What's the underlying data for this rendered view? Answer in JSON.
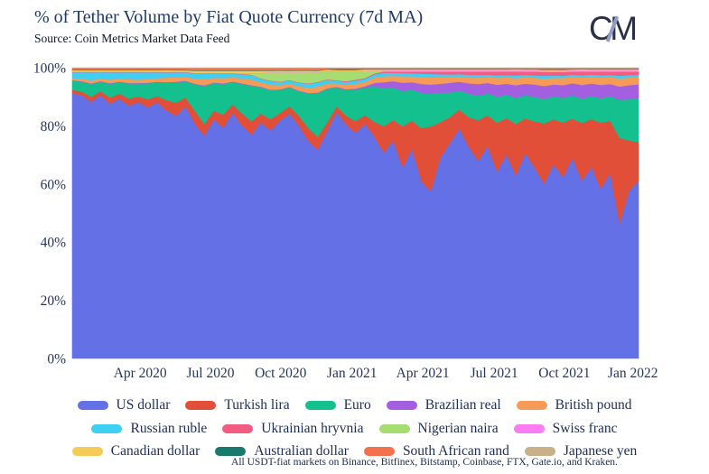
{
  "header": {
    "title": "% of Tether Volume by Fiat Quote Currency (7d MA)",
    "source": "Source: Coin Metrics Market Data Feed",
    "logo": {
      "left_letter": "C",
      "right_letter": "M",
      "slash_color": "#939bc7",
      "letter_color": "#2a3049"
    }
  },
  "footer": {
    "note": "All USDT-fiat markets on Binance, Bitfinex, Bitstamp, Coinbase, FTX, Gate.io, and Kraken."
  },
  "colors": {
    "title_text": "#1e3a68",
    "axis_text": "#26355e",
    "legend_text": "#1e2d55",
    "background": "#ffffff"
  },
  "legend": {
    "rows": [
      [
        "US dollar",
        "Turkish lira",
        "Euro",
        "Brazilian real",
        "British pound"
      ],
      [
        "Russian ruble",
        "Ukrainian hryvnia",
        "Nigerian naira",
        "Swiss franc"
      ],
      [
        "Canadian dollar",
        "Australian dollar",
        "South African rand",
        "Japanese yen"
      ]
    ]
  },
  "chart_data": {
    "type": "area",
    "stacked": true,
    "normalized_to_100_percent": true,
    "title": "% of Tether Volume by Fiat Quote Currency (7d MA)",
    "xlabel": "",
    "ylabel": "",
    "ylim": [
      0,
      100
    ],
    "grid": false,
    "legend_position": "bottom",
    "x_range": "Jan 2020 to Jan 2022, 61 samples (~12-day intervals)",
    "x_ticks": [
      {
        "label": "Apr 2020",
        "t": 0.12
      },
      {
        "label": "Jul 2020",
        "t": 0.244
      },
      {
        "label": "Oct 2020",
        "t": 0.368
      },
      {
        "label": "Jan 2021",
        "t": 0.494
      },
      {
        "label": "Apr 2021",
        "t": 0.619
      },
      {
        "label": "Jul 2021",
        "t": 0.745
      },
      {
        "label": "Oct 2021",
        "t": 0.869
      },
      {
        "label": "Jan 2022",
        "t": 0.99
      }
    ],
    "y_ticks": [
      {
        "v": 0,
        "label": "0%"
      },
      {
        "v": 20,
        "label": "20%"
      },
      {
        "v": 40,
        "label": "40%"
      },
      {
        "v": 60,
        "label": "60%"
      },
      {
        "v": 80,
        "label": "80%"
      },
      {
        "v": 100,
        "label": "100%"
      }
    ],
    "values_unit": "approximate % share of USDT-fiat volume (columns normalized to 100%)",
    "series": [
      {
        "name": "US dollar",
        "color": "#6470e6",
        "values": [
          93,
          92.5,
          90,
          92.5,
          89,
          90.5,
          88,
          89.5,
          87,
          88.5,
          85,
          83,
          86,
          80,
          76.5,
          82,
          79,
          83.5,
          79,
          76,
          81,
          79,
          82.5,
          84.5,
          81,
          76,
          72,
          78,
          86,
          82,
          78.5,
          80.5,
          76,
          70,
          74,
          65,
          70.5,
          60,
          57,
          68,
          74,
          79,
          72,
          68,
          73,
          65,
          70,
          64,
          71,
          66,
          61,
          67,
          63,
          69,
          62,
          66,
          59,
          64,
          46,
          57,
          60
        ]
      },
      {
        "name": "Turkish lira",
        "color": "#e14f38",
        "values": [
          1.2,
          1.3,
          1.8,
          1.4,
          2.2,
          1.8,
          2.5,
          2,
          2.8,
          2.2,
          3.5,
          4.5,
          3,
          4.5,
          4,
          3,
          4.5,
          2.8,
          4.2,
          4.5,
          3,
          4,
          2.8,
          2.5,
          3.5,
          4.5,
          4.5,
          3,
          2,
          3,
          4,
          3,
          5,
          9,
          7,
          14,
          9.5,
          18,
          22,
          12,
          9,
          6.5,
          10,
          14,
          10.5,
          17,
          12.5,
          18,
          12,
          16,
          21,
          15.5,
          19,
          13.5,
          20,
          16.5,
          23,
          18,
          29,
          17,
          13
        ]
      },
      {
        "name": "Euro",
        "color": "#14c08d",
        "values": [
          3.2,
          3.4,
          4.5,
          3.3,
          4.8,
          4,
          5.2,
          4.5,
          5.5,
          4.8,
          6,
          7,
          5.5,
          9,
          13,
          9.5,
          10.5,
          7.5,
          10,
          12,
          9,
          10,
          8,
          6.5,
          8.5,
          12,
          15,
          11.5,
          6.5,
          9,
          11,
          9.5,
          12,
          13,
          11,
          12,
          10.5,
          12,
          11,
          10,
          8.5,
          6.5,
          8,
          8.5,
          7.5,
          9,
          8,
          9,
          8,
          8.5,
          8.5,
          8,
          8.5,
          8,
          8.5,
          8,
          8.5,
          8.5,
          13,
          14,
          15
        ]
      },
      {
        "name": "Brazilian real",
        "color": "#a45fe0",
        "values": [
          0.2,
          0.2,
          0.2,
          0.2,
          0.2,
          0.2,
          0.2,
          0.2,
          0.2,
          0.2,
          0.2,
          0.2,
          0.2,
          0.2,
          0.2,
          0.2,
          0.2,
          0.2,
          0.2,
          0.2,
          0.2,
          0.2,
          0.2,
          0.2,
          0.2,
          0.2,
          0.2,
          0.2,
          0.3,
          0.3,
          0.35,
          0.4,
          1.2,
          2,
          2.2,
          2.8,
          2.5,
          3,
          3.2,
          3,
          3.3,
          3,
          3.5,
          4,
          3.6,
          4.2,
          3.8,
          4.5,
          4,
          4.3,
          4.6,
          4,
          4.5,
          4.2,
          4.8,
          4.3,
          4.6,
          4.2,
          4.5,
          4.8,
          4.5
        ]
      },
      {
        "name": "British pound",
        "color": "#f59b57",
        "values": [
          0.8,
          0.9,
          1.1,
          0.9,
          1.2,
          1,
          1.3,
          1.1,
          1.4,
          1.2,
          1.5,
          1.6,
          1.3,
          1.8,
          2.2,
          1.6,
          1.8,
          1.4,
          1.7,
          1.9,
          1.5,
          1.7,
          1.4,
          1.2,
          1.5,
          1.8,
          2,
          1.7,
          1.2,
          1.5,
          1.7,
          1.5,
          1.8,
          2,
          1.8,
          2.2,
          2,
          2.4,
          2.5,
          2.2,
          2,
          1.8,
          2,
          2.2,
          2,
          2.4,
          2.2,
          2.5,
          2.2,
          2.4,
          2.6,
          2.3,
          2.5,
          2.2,
          2.6,
          2.3,
          2.6,
          2.4,
          2.8,
          2.6,
          2.4
        ]
      },
      {
        "name": "Russian ruble",
        "color": "#3ecff2",
        "values": [
          2,
          2.2,
          2.8,
          2.2,
          2.6,
          2.2,
          2.4,
          2.6,
          2.2,
          2,
          1.8,
          1.6,
          1.5,
          1.6,
          1.8,
          1.4,
          1.5,
          1.2,
          1.4,
          1.5,
          1.2,
          1.3,
          1.1,
          1,
          1.2,
          1.4,
          1.5,
          1.2,
          0.9,
          1,
          1.1,
          1,
          1.1,
          1.2,
          1,
          1.1,
          1,
          1.1,
          1.1,
          1,
          0.9,
          0.8,
          0.9,
          0.9,
          0.8,
          0.9,
          0.8,
          0.9,
          0.8,
          0.8,
          0.9,
          0.8,
          0.8,
          0.7,
          0.8,
          0.7,
          0.8,
          0.7,
          0.9,
          0.8,
          0.8
        ]
      },
      {
        "name": "Ukrainian hryvnia",
        "color": "#f25c80",
        "values": [
          0.15,
          0.15,
          0.15,
          0.15,
          0.15,
          0.15,
          0.15,
          0.15,
          0.15,
          0.15,
          0.15,
          0.15,
          0.15,
          0.15,
          0.15,
          0.15,
          0.15,
          0.15,
          0.15,
          0.15,
          0.15,
          0.15,
          0.15,
          0.15,
          0.15,
          0.15,
          0.2,
          0.2,
          0.2,
          0.25,
          0.3,
          0.3,
          0.35,
          0.4,
          0.45,
          0.5,
          0.55,
          0.7,
          0.8,
          0.9,
          1,
          0.9,
          1.1,
          1.2,
          1.1,
          1.3,
          1.2,
          1.4,
          1.2,
          1.3,
          1.4,
          1.2,
          1.3,
          1.1,
          1.3,
          1.1,
          1.3,
          1.2,
          1.4,
          1.2,
          1.1
        ]
      },
      {
        "name": "Nigerian naira",
        "color": "#a5dd72",
        "values": [
          0.05,
          0.05,
          0.05,
          0.05,
          0.05,
          0.05,
          0.05,
          0.05,
          0.05,
          0.05,
          0.05,
          0.05,
          0.05,
          0.05,
          0.05,
          0.05,
          0.05,
          0.05,
          0.2,
          0.5,
          1.8,
          2.8,
          3.2,
          2.6,
          3.4,
          3.8,
          3.2,
          2.8,
          3,
          3.4,
          2.8,
          2.4,
          0.8,
          0.3,
          0.15,
          0.15,
          0.15,
          0.15,
          0.15,
          0.15,
          0.15,
          0.15,
          0.15,
          0.15,
          0.15,
          0.15,
          0.15,
          0.15,
          0.15,
          0.15,
          0.15,
          0.15,
          0.15,
          0.15,
          0.15,
          0.15,
          0.15,
          0.15,
          0.15,
          0.15,
          0.15
        ]
      },
      {
        "name": "Swiss franc",
        "color": "#f97cf2",
        "values": [
          0.1,
          0.1,
          0.1,
          0.1,
          0.1,
          0.1,
          0.1,
          0.1,
          0.1,
          0.1,
          0.1,
          0.1,
          0.1,
          0.1,
          0.1,
          0.1,
          0.1,
          0.1,
          0.1,
          0.1,
          0.1,
          0.1,
          0.1,
          0.1,
          0.1,
          0.1,
          0.1,
          0.1,
          0.1,
          0.1,
          0.1,
          0.1,
          0.1,
          0.1,
          0.25,
          0.25,
          0.25,
          0.25,
          0.25,
          0.25,
          0.25,
          0.25,
          0.25,
          0.25,
          0.25,
          0.25,
          0.25,
          0.25,
          0.25,
          0.25,
          0.25,
          0.25,
          0.25,
          0.25,
          0.25,
          0.25,
          0.25,
          0.25,
          0.25,
          0.25,
          0.25
        ]
      },
      {
        "name": "Canadian dollar",
        "color": "#f4cb57",
        "values": [
          0.45,
          0.45,
          0.45,
          0.45,
          0.45,
          0.45,
          0.45,
          0.45,
          0.45,
          0.45,
          0.45,
          0.45,
          0.45,
          0.7,
          0.7,
          0.7,
          0.7,
          0.7,
          0.7,
          0.7,
          0.7,
          0.5,
          0.5,
          0.5,
          0.5,
          0.5,
          0.5,
          0.5,
          0.5,
          0.5,
          0.5,
          0.5,
          0.5,
          0.35,
          0.35,
          0.35,
          0.35,
          0.35,
          0.35,
          0.35,
          0.35,
          0.35,
          0.35,
          0.35,
          0.35,
          0.35,
          0.35,
          0.35,
          0.35,
          0.35,
          0.35,
          0.35,
          0.35,
          0.35,
          0.35,
          0.35,
          0.35,
          0.35,
          0.35,
          0.35,
          0.35
        ]
      },
      {
        "name": "Australian dollar",
        "color": "#177a6c",
        "values": [
          0.15,
          0.15,
          0.15,
          0.15,
          0.15,
          0.15,
          0.15,
          0.15,
          0.15,
          0.15,
          0.15,
          0.15,
          0.15,
          0.15,
          0.15,
          0.15,
          0.15,
          0.15,
          0.15,
          0.15,
          0.15,
          0.15,
          0.15,
          0.15,
          0.15,
          0.15,
          0.15,
          0.15,
          0.35,
          0.35,
          0.35,
          0.15,
          0.15,
          0.15,
          0.15,
          0.15,
          0.15,
          0.15,
          0.15,
          0.15,
          0.15,
          0.15,
          0.15,
          0.15,
          0.15,
          0.15,
          0.15,
          0.15,
          0.15,
          0.15,
          0.3,
          0.3,
          0.3,
          0.15,
          0.15,
          0.15,
          0.15,
          0.15,
          0.15,
          0.15,
          0.15
        ]
      },
      {
        "name": "South African rand",
        "color": "#f4714d",
        "values": [
          0.6,
          0.6,
          0.6,
          0.6,
          0.6,
          0.6,
          0.6,
          0.6,
          0.6,
          0.6,
          0.6,
          0.6,
          0.6,
          0.8,
          0.8,
          0.8,
          0.8,
          0.8,
          0.8,
          0.8,
          0.8,
          0.8,
          0.8,
          0.8,
          0.8,
          0.8,
          0.8,
          0.3,
          0.3,
          0.3,
          0.3,
          0.3,
          0.3,
          0.3,
          0.3,
          0.3,
          0.3,
          0.3,
          0.3,
          0.3,
          0.3,
          0.3,
          0.3,
          0.3,
          0.3,
          0.3,
          0.3,
          0.3,
          0.3,
          0.3,
          0.3,
          0.3,
          0.3,
          0.3,
          0.3,
          0.3,
          0.3,
          0.3,
          0.3,
          0.3,
          0.3
        ]
      },
      {
        "name": "Japanese yen",
        "color": "#c9b089",
        "values": [
          0.1,
          0.1,
          0.1,
          0.1,
          0.1,
          0.1,
          0.1,
          0.1,
          0.1,
          0.1,
          0.1,
          0.1,
          0.1,
          0.1,
          0.1,
          0.1,
          0.1,
          0.1,
          0.1,
          0.1,
          0.1,
          0.1,
          0.1,
          0.1,
          0.1,
          0.1,
          0.1,
          0.1,
          0.1,
          0.1,
          0.1,
          0.1,
          0.1,
          0.1,
          0.1,
          0.1,
          0.1,
          0.1,
          0.1,
          0.1,
          0.1,
          0.1,
          0.1,
          0.1,
          0.1,
          0.1,
          0.1,
          0.1,
          0.1,
          0.1,
          0.1,
          0.1,
          0.1,
          0.1,
          0.1,
          0.1,
          0.1,
          0.1,
          0.1,
          0.1,
          0.1
        ]
      }
    ]
  }
}
